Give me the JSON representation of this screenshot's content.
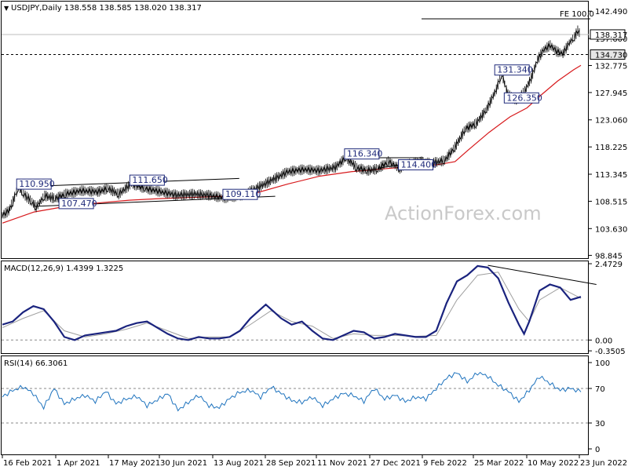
{
  "chart_data": [
    {
      "type": "candlestick",
      "symbol_header": "USDJPY,Daily",
      "ohlc_header": "138.558 138.585 138.020 138.317",
      "watermark": "ActionForex.com",
      "y_ticks": [
        "142.490",
        "137.600",
        "132.775",
        "127.945",
        "123.060",
        "118.225",
        "113.345",
        "108.515",
        "103.630",
        "98.845"
      ],
      "y_tick_values": [
        142.49,
        137.6,
        132.775,
        127.945,
        123.06,
        118.225,
        113.345,
        108.515,
        103.63,
        98.845
      ],
      "ylim": [
        98.2,
        144.2
      ],
      "current_price_label": "138.317",
      "current_price": 138.317,
      "support_label": "134.730",
      "support_level": 134.73,
      "fe_label": "FE 100.0",
      "fe_level": 143.4,
      "level_labels": [
        {
          "text": "110.950",
          "x": 15,
          "y": 110.95
        },
        {
          "text": "107.470",
          "x": 55,
          "y": 107.47
        },
        {
          "text": "111.650",
          "x": 122,
          "y": 111.65
        },
        {
          "text": "109.110",
          "x": 210,
          "y": 109.11
        },
        {
          "text": "116.340",
          "x": 325,
          "y": 116.34
        },
        {
          "text": "114.400",
          "x": 376,
          "y": 114.4
        },
        {
          "text": "131.340",
          "x": 467,
          "y": 131.34
        },
        {
          "text": "126.350",
          "x": 476,
          "y": 126.35
        }
      ],
      "price_line": [
        [
          0,
          106.0
        ],
        [
          6,
          106.8
        ],
        [
          10,
          108.5
        ],
        [
          15,
          110.95
        ],
        [
          20,
          109.8
        ],
        [
          28,
          108.4
        ],
        [
          32,
          107.47
        ],
        [
          40,
          109.5
        ],
        [
          50,
          109.0
        ],
        [
          60,
          109.8
        ],
        [
          75,
          110.4
        ],
        [
          90,
          110.2
        ],
        [
          100,
          110.8
        ],
        [
          110,
          109.8
        ],
        [
          122,
          111.65
        ],
        [
          135,
          110.8
        ],
        [
          150,
          110.2
        ],
        [
          165,
          109.6
        ],
        [
          180,
          109.8
        ],
        [
          195,
          109.6
        ],
        [
          210,
          109.11
        ],
        [
          225,
          109.5
        ],
        [
          240,
          110.8
        ],
        [
          255,
          112.3
        ],
        [
          270,
          113.8
        ],
        [
          285,
          114.2
        ],
        [
          300,
          114.0
        ],
        [
          315,
          114.6
        ],
        [
          325,
          116.34
        ],
        [
          335,
          114.5
        ],
        [
          345,
          114.0
        ],
        [
          355,
          114.3
        ],
        [
          365,
          115.6
        ],
        [
          376,
          114.4
        ],
        [
          385,
          115.2
        ],
        [
          395,
          115.6
        ],
        [
          405,
          115.3
        ],
        [
          418,
          115.8
        ],
        [
          428,
          118.2
        ],
        [
          438,
          121.5
        ],
        [
          448,
          122.4
        ],
        [
          458,
          125.0
        ],
        [
          467,
          128.5
        ],
        [
          472,
          131.34
        ],
        [
          478,
          127.6
        ],
        [
          486,
          126.35
        ],
        [
          494,
          128.2
        ],
        [
          500,
          130.5
        ],
        [
          506,
          133.8
        ],
        [
          512,
          135.6
        ],
        [
          518,
          136.4
        ],
        [
          524,
          135.3
        ],
        [
          530,
          134.9
        ],
        [
          536,
          136.8
        ],
        [
          541,
          137.9
        ],
        [
          544,
          139.0
        ],
        [
          547,
          138.317
        ]
      ],
      "ma_line": [
        [
          0,
          104.6
        ],
        [
          30,
          106.6
        ],
        [
          60,
          107.6
        ],
        [
          90,
          108.2
        ],
        [
          120,
          108.7
        ],
        [
          150,
          109.0
        ],
        [
          180,
          109.2
        ],
        [
          210,
          109.4
        ],
        [
          240,
          110.0
        ],
        [
          270,
          111.6
        ],
        [
          300,
          113.0
        ],
        [
          330,
          113.8
        ],
        [
          360,
          114.3
        ],
        [
          390,
          114.8
        ],
        [
          410,
          115.0
        ],
        [
          428,
          115.6
        ],
        [
          440,
          117.6
        ],
        [
          460,
          120.8
        ],
        [
          480,
          123.6
        ],
        [
          496,
          125.2
        ],
        [
          510,
          127.6
        ],
        [
          525,
          130.0
        ],
        [
          540,
          132.0
        ],
        [
          547,
          132.8
        ]
      ],
      "trend_lines": [
        [
          [
            33,
            111.2
          ],
          [
            224,
            112.6
          ]
        ],
        [
          [
            30,
            107.6
          ],
          [
            258,
            109.4
          ]
        ],
        [
          [
            355,
            116.3
          ],
          [
            398,
            116.3
          ]
        ],
        [
          [
            355,
            114.4
          ],
          [
            398,
            115.7
          ]
        ]
      ]
    },
    {
      "type": "line",
      "header": "MACD(12,26,9) 1.4399 1.3225",
      "y_ticks": [
        "2.4729",
        "0.00",
        "-0.3505"
      ],
      "y_tick_values": [
        2.4729,
        0.0,
        -0.3505
      ],
      "ylim": [
        -0.45,
        2.55
      ],
      "macd_line": [
        [
          0,
          0.5
        ],
        [
          10,
          0.6
        ],
        [
          20,
          0.9
        ],
        [
          30,
          1.1
        ],
        [
          40,
          1.0
        ],
        [
          50,
          0.6
        ],
        [
          60,
          0.1
        ],
        [
          70,
          0.0
        ],
        [
          80,
          0.15
        ],
        [
          90,
          0.2
        ],
        [
          100,
          0.25
        ],
        [
          110,
          0.3
        ],
        [
          120,
          0.45
        ],
        [
          130,
          0.55
        ],
        [
          140,
          0.6
        ],
        [
          150,
          0.4
        ],
        [
          160,
          0.2
        ],
        [
          170,
          0.05
        ],
        [
          180,
          0.0
        ],
        [
          190,
          0.1
        ],
        [
          200,
          0.05
        ],
        [
          210,
          0.05
        ],
        [
          220,
          0.1
        ],
        [
          230,
          0.3
        ],
        [
          240,
          0.7
        ],
        [
          250,
          1.0
        ],
        [
          255,
          1.15
        ],
        [
          260,
          1.0
        ],
        [
          270,
          0.7
        ],
        [
          280,
          0.5
        ],
        [
          290,
          0.6
        ],
        [
          300,
          0.3
        ],
        [
          310,
          0.05
        ],
        [
          320,
          0.0
        ],
        [
          330,
          0.15
        ],
        [
          340,
          0.3
        ],
        [
          350,
          0.25
        ],
        [
          360,
          0.05
        ],
        [
          370,
          0.1
        ],
        [
          380,
          0.2
        ],
        [
          390,
          0.15
        ],
        [
          400,
          0.1
        ],
        [
          410,
          0.1
        ],
        [
          420,
          0.3
        ],
        [
          430,
          1.2
        ],
        [
          440,
          1.9
        ],
        [
          450,
          2.1
        ],
        [
          460,
          2.4
        ],
        [
          470,
          2.35
        ],
        [
          480,
          2.0
        ],
        [
          490,
          1.2
        ],
        [
          500,
          0.5
        ],
        [
          505,
          0.2
        ],
        [
          510,
          0.6
        ],
        [
          520,
          1.6
        ],
        [
          530,
          1.8
        ],
        [
          540,
          1.7
        ],
        [
          550,
          1.3
        ],
        [
          560,
          1.4
        ]
      ],
      "signal_line": [
        [
          0,
          0.4
        ],
        [
          20,
          0.7
        ],
        [
          40,
          0.95
        ],
        [
          60,
          0.3
        ],
        [
          80,
          0.1
        ],
        [
          100,
          0.2
        ],
        [
          120,
          0.35
        ],
        [
          140,
          0.55
        ],
        [
          160,
          0.3
        ],
        [
          180,
          0.05
        ],
        [
          200,
          0.1
        ],
        [
          220,
          0.1
        ],
        [
          240,
          0.5
        ],
        [
          260,
          0.95
        ],
        [
          280,
          0.6
        ],
        [
          300,
          0.45
        ],
        [
          320,
          0.05
        ],
        [
          340,
          0.2
        ],
        [
          360,
          0.15
        ],
        [
          380,
          0.15
        ],
        [
          400,
          0.12
        ],
        [
          420,
          0.15
        ],
        [
          440,
          1.3
        ],
        [
          460,
          2.1
        ],
        [
          480,
          2.2
        ],
        [
          500,
          1.0
        ],
        [
          510,
          0.6
        ],
        [
          520,
          1.3
        ],
        [
          540,
          1.7
        ],
        [
          560,
          1.35
        ]
      ],
      "divergence_line": [
        [
          470,
          2.42
        ],
        [
          575,
          1.8
        ]
      ]
    },
    {
      "type": "line",
      "header": "RSI(14) 66.3061",
      "y_ticks": [
        "100",
        "70",
        "30",
        "0"
      ],
      "y_tick_values": [
        100,
        70,
        30,
        0
      ],
      "ylim": [
        0,
        100
      ],
      "dashed_levels": [
        70,
        30
      ],
      "rsi_line": [
        [
          0,
          60
        ],
        [
          10,
          68
        ],
        [
          20,
          72
        ],
        [
          30,
          64
        ],
        [
          40,
          48
        ],
        [
          50,
          70
        ],
        [
          60,
          52
        ],
        [
          70,
          58
        ],
        [
          80,
          62
        ],
        [
          90,
          55
        ],
        [
          100,
          67
        ],
        [
          110,
          52
        ],
        [
          120,
          58
        ],
        [
          130,
          61
        ],
        [
          140,
          50
        ],
        [
          150,
          57
        ],
        [
          160,
          64
        ],
        [
          170,
          45
        ],
        [
          180,
          54
        ],
        [
          190,
          62
        ],
        [
          200,
          50
        ],
        [
          210,
          48
        ],
        [
          220,
          58
        ],
        [
          230,
          66
        ],
        [
          240,
          68
        ],
        [
          250,
          60
        ],
        [
          260,
          72
        ],
        [
          270,
          64
        ],
        [
          280,
          56
        ],
        [
          290,
          54
        ],
        [
          300,
          60
        ],
        [
          310,
          50
        ],
        [
          320,
          58
        ],
        [
          330,
          64
        ],
        [
          340,
          62
        ],
        [
          350,
          55
        ],
        [
          360,
          70
        ],
        [
          370,
          58
        ],
        [
          380,
          62
        ],
        [
          390,
          55
        ],
        [
          400,
          60
        ],
        [
          410,
          58
        ],
        [
          420,
          70
        ],
        [
          430,
          82
        ],
        [
          440,
          88
        ],
        [
          450,
          78
        ],
        [
          460,
          88
        ],
        [
          470,
          84
        ],
        [
          480,
          74
        ],
        [
          490,
          66
        ],
        [
          500,
          55
        ],
        [
          510,
          68
        ],
        [
          520,
          84
        ],
        [
          530,
          76
        ],
        [
          540,
          68
        ],
        [
          550,
          70
        ],
        [
          560,
          66
        ]
      ]
    }
  ],
  "x_ticks": [
    "16 Feb 2021",
    "1 Apr 2021",
    "17 May 2021",
    "30 Jun 2021",
    "13 Aug 2021",
    "28 Sep 2021",
    "11 Nov 2021",
    "27 Dec 2021",
    "9 Feb 2022",
    "25 Mar 2022",
    "10 May 2022",
    "23 Jun 2022"
  ],
  "x_tick_positions": [
    0,
    68,
    135,
    200,
    268,
    335,
    400,
    468,
    535,
    600,
    668,
    735
  ],
  "colors": {
    "candle": "#000000",
    "moving_average": "#d7191c",
    "macd": "#1a237e",
    "signal": "#9e9e9e",
    "rsi": "#1e73be",
    "level_label": "#1f2a7a"
  }
}
